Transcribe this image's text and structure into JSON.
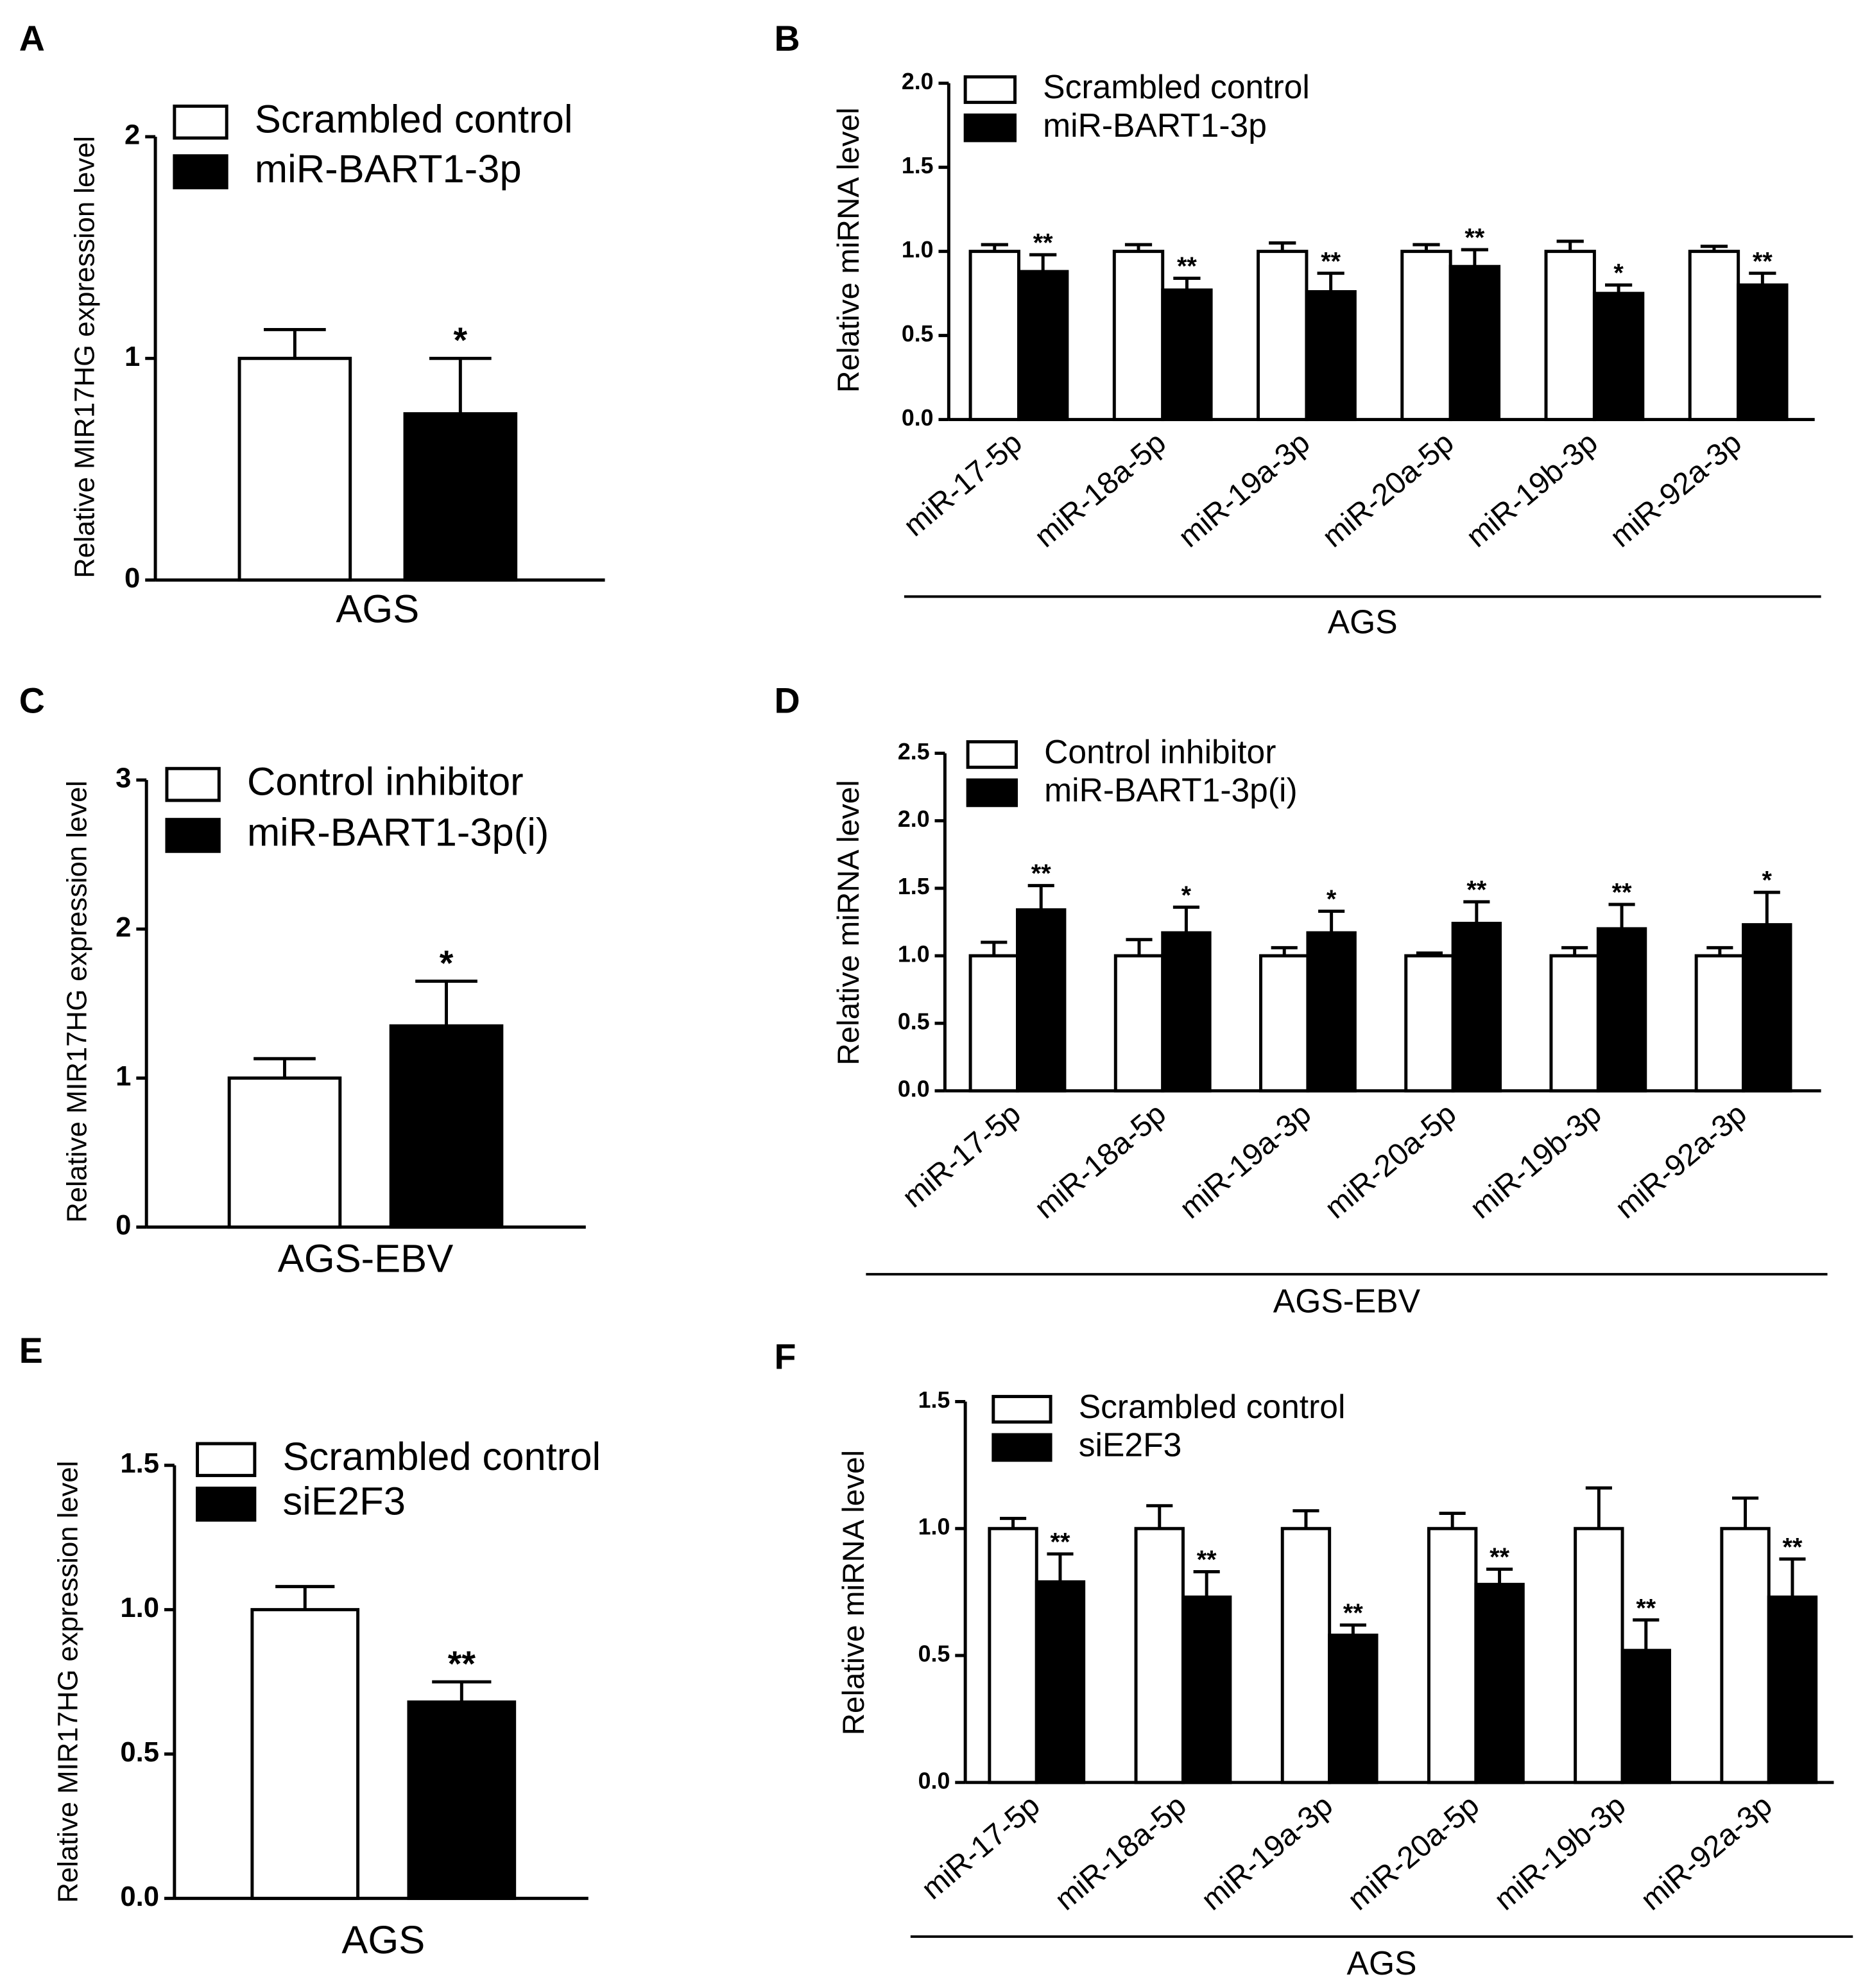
{
  "chart_data": [
    {
      "type": "bar",
      "panel": "A",
      "ylabel": "Relative MIR17HG expression level",
      "xlabel": "AGS",
      "categories": [
        "AGS"
      ],
      "series": [
        {
          "name": "Scrambled control",
          "color": "#ffffff",
          "values": [
            1.0
          ],
          "errors": [
            0.13
          ]
        },
        {
          "name": "miR-BART1-3p",
          "color": "#000000",
          "values": [
            0.75
          ],
          "errors": [
            0.25
          ],
          "significance": [
            "*"
          ]
        }
      ],
      "ylim": [
        0,
        2
      ],
      "yticks": [
        0,
        1,
        2
      ]
    },
    {
      "type": "bar",
      "panel": "B",
      "ylabel": "Relative miRNA level",
      "xlabel": "AGS",
      "categories": [
        "miR-17-5p",
        "miR-18a-5p",
        "miR-19a-3p",
        "miR-20a-5p",
        "miR-19b-3p",
        "miR-92a-3p"
      ],
      "series": [
        {
          "name": "Scrambled control",
          "color": "#ffffff",
          "values": [
            1.0,
            1.0,
            1.0,
            1.0,
            1.0,
            1.0
          ],
          "errors": [
            0.04,
            0.04,
            0.05,
            0.04,
            0.06,
            0.03
          ]
        },
        {
          "name": "miR-BART1-3p",
          "color": "#000000",
          "values": [
            0.88,
            0.77,
            0.76,
            0.91,
            0.75,
            0.8
          ],
          "errors": [
            0.1,
            0.07,
            0.11,
            0.1,
            0.05,
            0.07
          ],
          "significance": [
            "**",
            "**",
            "**",
            "**",
            "*",
            "**"
          ]
        }
      ],
      "ylim": [
        0,
        2
      ],
      "yticks": [
        {
          "value": 0,
          "label": "0.0"
        },
        {
          "value": 0.5,
          "label": "0.5"
        },
        {
          "value": 1,
          "label": "1.0"
        },
        {
          "value": 1.5,
          "label": "1.5"
        },
        {
          "value": 2,
          "label": "2.0"
        }
      ]
    },
    {
      "type": "bar",
      "panel": "C",
      "ylabel": "Relative MIR17HG expression level",
      "xlabel": "AGS-EBV",
      "categories": [
        "AGS-EBV"
      ],
      "series": [
        {
          "name": "Control inhibitor",
          "color": "#ffffff",
          "values": [
            1.0
          ],
          "errors": [
            0.13
          ]
        },
        {
          "name": "miR-BART1-3p(i)",
          "color": "#000000",
          "values": [
            1.35
          ],
          "errors": [
            0.3
          ],
          "significance": [
            "*"
          ]
        }
      ],
      "ylim": [
        0,
        3
      ],
      "yticks": [
        0,
        1,
        2,
        3
      ]
    },
    {
      "type": "bar",
      "panel": "D",
      "ylabel": "Relative miRNA level",
      "xlabel": "AGS-EBV",
      "categories": [
        "miR-17-5p",
        "miR-18a-5p",
        "miR-19a-3p",
        "miR-20a-5p",
        "miR-19b-3p",
        "miR-92a-3p"
      ],
      "series": [
        {
          "name": "Control inhibitor",
          "color": "#ffffff",
          "values": [
            1.0,
            1.0,
            1.0,
            1.0,
            1.0,
            1.0
          ],
          "errors": [
            0.1,
            0.12,
            0.06,
            0.02,
            0.06,
            0.06
          ]
        },
        {
          "name": "miR-BART1-3p(i)",
          "color": "#000000",
          "values": [
            1.34,
            1.17,
            1.17,
            1.24,
            1.2,
            1.23
          ],
          "errors": [
            0.18,
            0.19,
            0.16,
            0.16,
            0.18,
            0.24
          ],
          "significance": [
            "**",
            "*",
            "*",
            "**",
            "**",
            "*"
          ]
        }
      ],
      "ylim": [
        0,
        2.5
      ],
      "yticks": [
        {
          "value": 0,
          "label": "0.0"
        },
        {
          "value": 0.5,
          "label": "0.5"
        },
        {
          "value": 1,
          "label": "1.0"
        },
        {
          "value": 1.5,
          "label": "1.5"
        },
        {
          "value": 2,
          "label": "2.0"
        },
        {
          "value": 2.5,
          "label": "2.5"
        }
      ]
    },
    {
      "type": "bar",
      "panel": "E",
      "ylabel": "Relative MIR17HG expression level",
      "xlabel": "AGS",
      "categories": [
        "AGS"
      ],
      "series": [
        {
          "name": "Scrambled control",
          "color": "#ffffff",
          "values": [
            1.0
          ],
          "errors": [
            0.08
          ]
        },
        {
          "name": "siE2F3",
          "color": "#000000",
          "values": [
            0.68
          ],
          "errors": [
            0.07
          ],
          "significance": [
            "**"
          ]
        }
      ],
      "ylim": [
        0,
        1.5
      ],
      "yticks": [
        {
          "value": 0,
          "label": "0.0"
        },
        {
          "value": 0.5,
          "label": "0.5"
        },
        {
          "value": 1,
          "label": "1.0"
        },
        {
          "value": 1.5,
          "label": "1.5"
        }
      ]
    },
    {
      "type": "bar",
      "panel": "F",
      "ylabel": "Relative miRNA level",
      "xlabel": "AGS",
      "categories": [
        "miR-17-5p",
        "miR-18a-5p",
        "miR-19a-3p",
        "miR-20a-5p",
        "miR-19b-3p",
        "miR-92a-3p"
      ],
      "series": [
        {
          "name": "Scrambled control",
          "color": "#ffffff",
          "values": [
            1.0,
            1.0,
            1.0,
            1.0,
            1.0,
            1.0
          ],
          "errors": [
            0.04,
            0.09,
            0.07,
            0.06,
            0.16,
            0.12
          ]
        },
        {
          "name": "siE2F3",
          "color": "#000000",
          "values": [
            0.79,
            0.73,
            0.58,
            0.78,
            0.52,
            0.73
          ],
          "errors": [
            0.11,
            0.1,
            0.04,
            0.06,
            0.12,
            0.15
          ],
          "significance": [
            "**",
            "**",
            "**",
            "**",
            "**",
            "**"
          ]
        }
      ],
      "ylim": [
        0,
        1.5
      ],
      "yticks": [
        {
          "value": 0,
          "label": "0.0"
        },
        {
          "value": 0.5,
          "label": "0.5"
        },
        {
          "value": 1,
          "label": "1.0"
        },
        {
          "value": 1.5,
          "label": "1.5"
        }
      ]
    }
  ]
}
